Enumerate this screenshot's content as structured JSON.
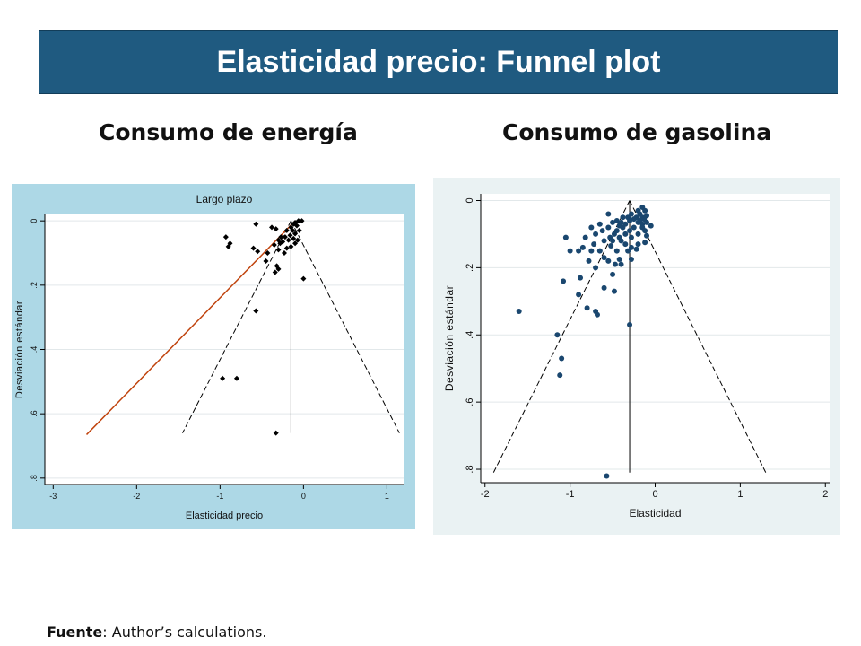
{
  "header": {
    "title": "Elasticidad precio: Funnel plot"
  },
  "subtitles": {
    "left": "Consumo de energía",
    "right": "Consumo de gasolina"
  },
  "source": {
    "label": "Fuente",
    "text": ": Author’s calculations."
  },
  "colors": {
    "title_bg": "#1f5a80",
    "left_panel_bg": "#add8e6",
    "right_panel_bg": "#eaf2f3",
    "left_markers": "#000000",
    "right_markers": "#1a476f",
    "regression_line": "#c0430d"
  },
  "chart_data": [
    {
      "type": "scatter",
      "title": "Largo plazo",
      "xlabel": "Elasticidad precio",
      "ylabel": "Desviación estándar",
      "xlim": [
        -3.1,
        1.2
      ],
      "ylim": [
        -0.02,
        0.82
      ],
      "y_reversed": true,
      "xticks": [
        -3,
        -2,
        -1,
        0,
        1
      ],
      "xtick_labels": [
        "-3",
        "-2",
        "-1",
        "0",
        "1"
      ],
      "yticks": [
        0,
        0.2,
        0.4,
        0.6,
        0.8
      ],
      "ytick_labels": [
        "0",
        ".2",
        ".4",
        ".6",
        ".8"
      ],
      "grid": "horizontal",
      "marker": "diamond",
      "pooled_estimate": -0.15,
      "funnel": {
        "apex": [
          -0.15,
          0
        ],
        "left_base": [
          -1.45,
          0.66
        ],
        "right_base": [
          1.15,
          0.66
        ]
      },
      "regression_line": {
        "from": [
          -2.6,
          0.665
        ],
        "to": [
          -0.1,
          0.0
        ]
      },
      "points": [
        [
          -0.57,
          0.01
        ],
        [
          -0.38,
          0.02
        ],
        [
          -0.33,
          0.025
        ],
        [
          -0.06,
          0.0
        ],
        [
          -0.02,
          0.0
        ],
        [
          -0.1,
          0.005
        ],
        [
          -0.12,
          0.01
        ],
        [
          -0.08,
          0.015
        ],
        [
          -0.15,
          0.02
        ],
        [
          -0.05,
          0.03
        ],
        [
          -0.13,
          0.03
        ],
        [
          -0.2,
          0.03
        ],
        [
          -0.1,
          0.04
        ],
        [
          -0.16,
          0.045
        ],
        [
          -0.22,
          0.05
        ],
        [
          -0.27,
          0.05
        ],
        [
          -0.12,
          0.055
        ],
        [
          -0.07,
          0.06
        ],
        [
          -0.3,
          0.06
        ],
        [
          -0.18,
          0.06
        ],
        [
          -0.25,
          0.065
        ],
        [
          -0.28,
          0.07
        ],
        [
          -0.1,
          0.07
        ],
        [
          -0.35,
          0.075
        ],
        [
          -0.15,
          0.08
        ],
        [
          -0.2,
          0.085
        ],
        [
          -0.3,
          0.09
        ],
        [
          -0.23,
          0.1
        ],
        [
          -0.43,
          0.1
        ],
        [
          -0.55,
          0.095
        ],
        [
          -0.32,
          0.14
        ],
        [
          -0.3,
          0.15
        ],
        [
          -0.34,
          0.16
        ],
        [
          -0.45,
          0.125
        ],
        [
          -0.93,
          0.05
        ],
        [
          -0.88,
          0.07
        ],
        [
          -0.9,
          0.08
        ],
        [
          -0.6,
          0.085
        ],
        [
          0.0,
          0.18
        ],
        [
          -0.57,
          0.28
        ],
        [
          -0.97,
          0.49
        ],
        [
          -0.8,
          0.49
        ],
        [
          -0.33,
          0.66
        ]
      ]
    },
    {
      "type": "scatter",
      "title": "",
      "xlabel": "Elasticidad",
      "ylabel": "Desviación estándar",
      "xlim": [
        -2.05,
        2.05
      ],
      "ylim": [
        -0.02,
        0.84
      ],
      "y_reversed": true,
      "xticks": [
        -2,
        -1,
        0,
        1,
        2
      ],
      "xtick_labels": [
        "-2",
        "-1",
        "0",
        "1",
        "2"
      ],
      "yticks": [
        0,
        0.2,
        0.4,
        0.6,
        0.8
      ],
      "ytick_labels": [
        "0",
        ".2",
        ".4",
        ".6",
        ".8"
      ],
      "grid": "horizontal",
      "marker": "circle",
      "pooled_estimate": -0.3,
      "funnel": {
        "apex": [
          -0.3,
          0
        ],
        "left_base": [
          -1.9,
          0.81
        ],
        "right_base": [
          1.3,
          0.81
        ]
      },
      "points": [
        [
          -0.15,
          0.02
        ],
        [
          -0.2,
          0.03
        ],
        [
          -0.12,
          0.03
        ],
        [
          -0.28,
          0.04
        ],
        [
          -0.18,
          0.04
        ],
        [
          -0.1,
          0.045
        ],
        [
          -0.32,
          0.05
        ],
        [
          -0.22,
          0.05
        ],
        [
          -0.15,
          0.05
        ],
        [
          -0.55,
          0.04
        ],
        [
          -0.38,
          0.05
        ],
        [
          -0.13,
          0.055
        ],
        [
          -0.25,
          0.055
        ],
        [
          -0.45,
          0.06
        ],
        [
          -0.3,
          0.06
        ],
        [
          -0.18,
          0.06
        ],
        [
          -0.5,
          0.065
        ],
        [
          -0.4,
          0.065
        ],
        [
          -0.2,
          0.065
        ],
        [
          -0.1,
          0.065
        ],
        [
          -0.35,
          0.07
        ],
        [
          -0.15,
          0.07
        ],
        [
          -0.42,
          0.075
        ],
        [
          -0.05,
          0.075
        ],
        [
          -0.65,
          0.07
        ],
        [
          -0.25,
          0.08
        ],
        [
          -0.38,
          0.08
        ],
        [
          -0.55,
          0.08
        ],
        [
          -0.15,
          0.08
        ],
        [
          -0.75,
          0.08
        ],
        [
          -0.45,
          0.09
        ],
        [
          -0.3,
          0.09
        ],
        [
          -0.12,
          0.09
        ],
        [
          -0.62,
          0.09
        ],
        [
          -0.48,
          0.1
        ],
        [
          -0.35,
          0.1
        ],
        [
          -0.2,
          0.1
        ],
        [
          -0.7,
          0.1
        ],
        [
          -0.53,
          0.11
        ],
        [
          -0.42,
          0.11
        ],
        [
          -0.28,
          0.11
        ],
        [
          -0.1,
          0.105
        ],
        [
          -0.82,
          0.11
        ],
        [
          -1.05,
          0.11
        ],
        [
          -0.5,
          0.12
        ],
        [
          -0.4,
          0.12
        ],
        [
          -0.6,
          0.12
        ],
        [
          -0.72,
          0.13
        ],
        [
          -0.35,
          0.13
        ],
        [
          -0.52,
          0.135
        ],
        [
          -0.2,
          0.13
        ],
        [
          -0.12,
          0.125
        ],
        [
          -0.85,
          0.14
        ],
        [
          -0.28,
          0.14
        ],
        [
          -0.22,
          0.145
        ],
        [
          -0.45,
          0.15
        ],
        [
          -0.65,
          0.15
        ],
        [
          -0.75,
          0.15
        ],
        [
          -0.9,
          0.15
        ],
        [
          -1.0,
          0.15
        ],
        [
          -0.32,
          0.15
        ],
        [
          -0.6,
          0.17
        ],
        [
          -0.42,
          0.175
        ],
        [
          -0.28,
          0.175
        ],
        [
          -0.78,
          0.18
        ],
        [
          -0.55,
          0.18
        ],
        [
          -0.4,
          0.19
        ],
        [
          -0.47,
          0.19
        ],
        [
          -0.7,
          0.2
        ],
        [
          -0.5,
          0.22
        ],
        [
          -0.88,
          0.23
        ],
        [
          -1.08,
          0.24
        ],
        [
          -0.6,
          0.26
        ],
        [
          -0.48,
          0.27
        ],
        [
          -0.9,
          0.28
        ],
        [
          -0.7,
          0.33
        ],
        [
          -0.8,
          0.32
        ],
        [
          -0.68,
          0.34
        ],
        [
          -1.6,
          0.33
        ],
        [
          -0.3,
          0.37
        ],
        [
          -1.15,
          0.4
        ],
        [
          -1.1,
          0.47
        ],
        [
          -1.12,
          0.52
        ],
        [
          -0.57,
          0.82
        ]
      ]
    }
  ]
}
